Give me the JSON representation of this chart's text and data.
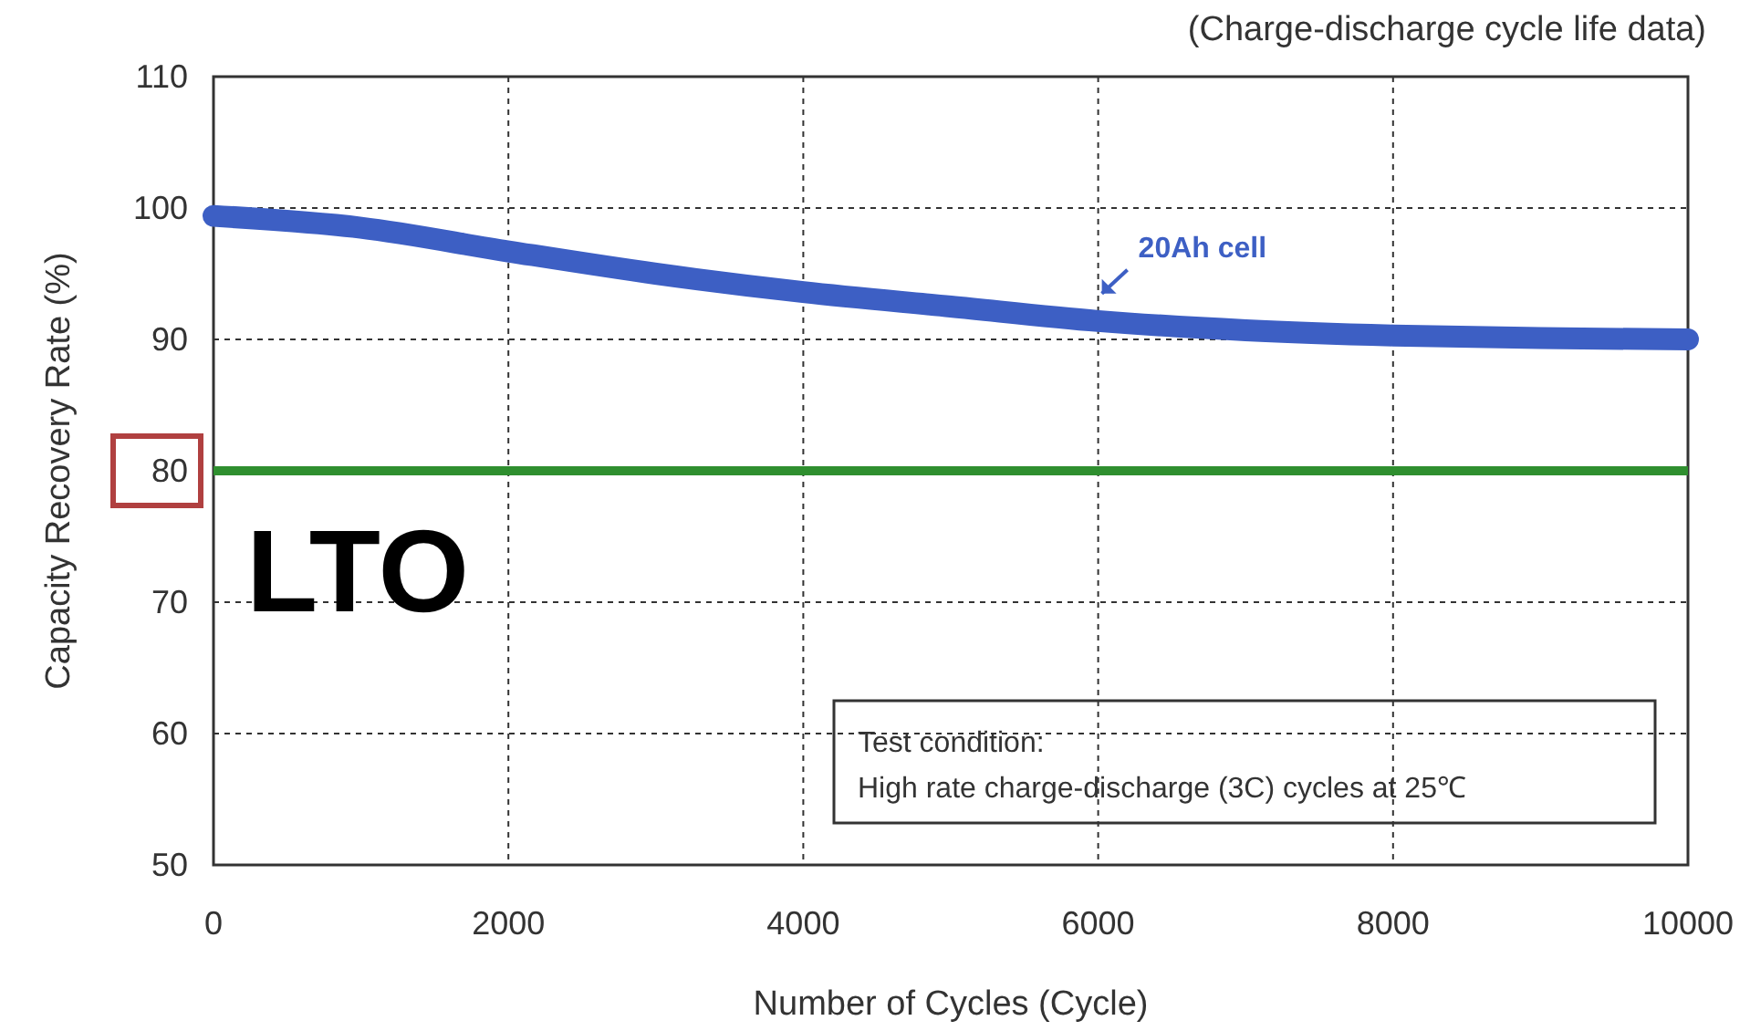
{
  "chart_data": {
    "type": "line",
    "xlabel": "Number of Cycles (Cycle)",
    "ylabel": "Capacity Recovery Rate (%)",
    "x": [
      0,
      1000,
      2000,
      3000,
      4000,
      5000,
      6000,
      7000,
      8000,
      9000,
      10000
    ],
    "series": [
      {
        "color": "#3d5fc4",
        "values": [
          99.4,
          98.5,
          96.7,
          95.0,
          93.6,
          92.5,
          91.4,
          90.7,
          90.3,
          90.1,
          90.0
        ]
      }
    ],
    "xlim": [
      0,
      10000
    ],
    "xticks": [
      0,
      2000,
      4000,
      6000,
      8000,
      10000
    ],
    "ylim": [
      50,
      110
    ],
    "yticks": [
      50,
      60,
      70,
      80,
      90,
      100,
      110
    ],
    "grid": true,
    "line_style": "solid",
    "ref_lines": [
      {
        "axis": "y",
        "value": 80,
        "color": "#2f8f2f"
      }
    ],
    "annotations": [
      "(Charge-discharge cycle life data)",
      {
        "text": "20Ah cell",
        "x": 6000,
        "y": 91.4
      },
      "LTO",
      "Test condition:\nHigh rate charge-discharge (3C) cycles at 25℃"
    ]
  }
}
